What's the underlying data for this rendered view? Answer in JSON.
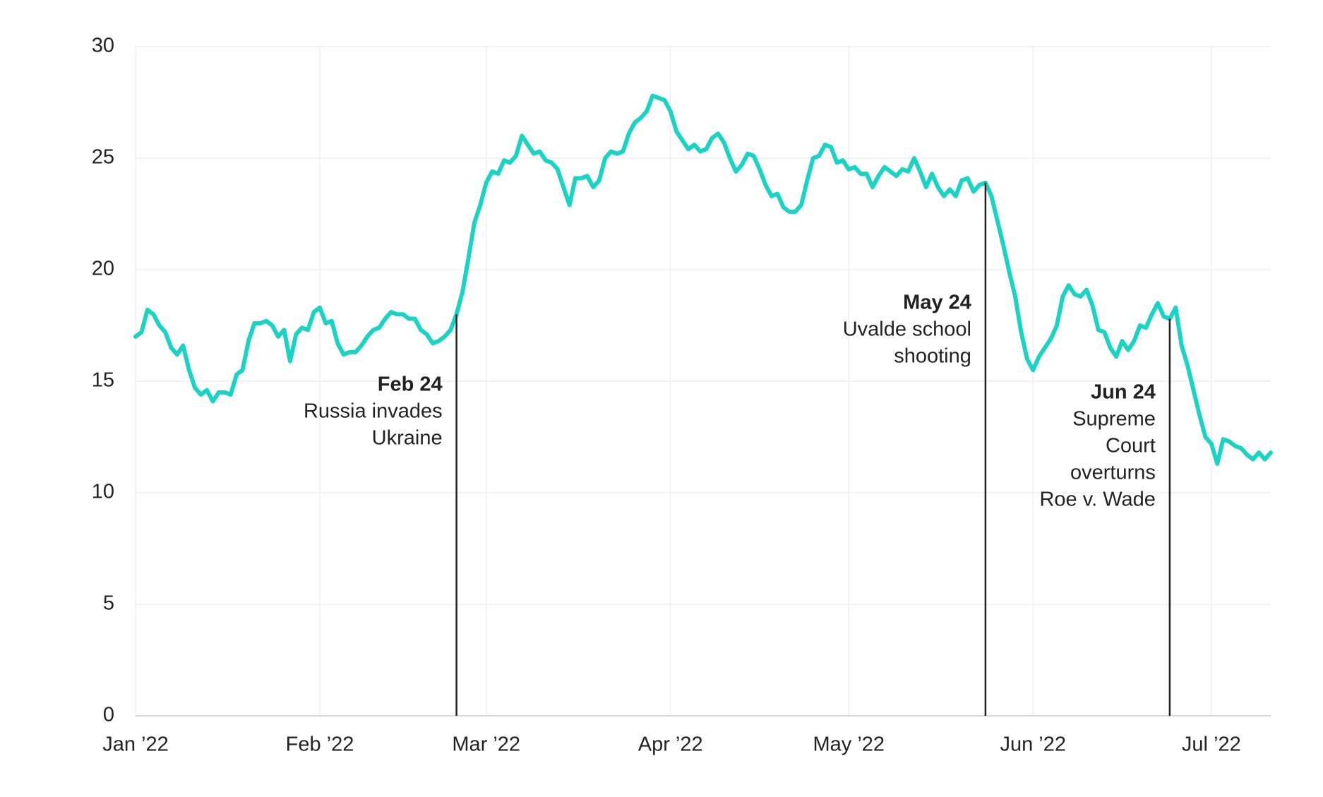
{
  "chart_data": {
    "type": "line",
    "color": "#19d3c5",
    "grid": true,
    "xlim": [
      0,
      191
    ],
    "ylim": [
      0,
      30
    ],
    "yticks": [
      0,
      5,
      10,
      15,
      20,
      25,
      30
    ],
    "xticks": [
      {
        "value": 0,
        "label": "Jan ’22"
      },
      {
        "value": 31,
        "label": "Feb ’22"
      },
      {
        "value": 59,
        "label": "Mar ’22"
      },
      {
        "value": 90,
        "label": "Apr ’22"
      },
      {
        "value": 120,
        "label": "May ’22"
      },
      {
        "value": 151,
        "label": "Jun ’22"
      },
      {
        "value": 181,
        "label": "Jul ’22"
      }
    ],
    "x": [
      0,
      1,
      2,
      3,
      4,
      5,
      6,
      7,
      8,
      9,
      10,
      11,
      12,
      13,
      14,
      15,
      16,
      17,
      18,
      19,
      20,
      21,
      22,
      23,
      24,
      25,
      26,
      27,
      28,
      29,
      30,
      31,
      32,
      33,
      34,
      35,
      36,
      37,
      38,
      39,
      40,
      41,
      42,
      43,
      44,
      45,
      46,
      47,
      48,
      49,
      50,
      51,
      52,
      53,
      54,
      55,
      56,
      57,
      58,
      59,
      60,
      61,
      62,
      63,
      64,
      65,
      66,
      67,
      68,
      69,
      70,
      71,
      72,
      73,
      74,
      75,
      76,
      77,
      78,
      79,
      80,
      81,
      82,
      83,
      84,
      85,
      86,
      87,
      88,
      89,
      90,
      91,
      92,
      93,
      94,
      95,
      96,
      97,
      98,
      99,
      100,
      101,
      102,
      103,
      104,
      105,
      106,
      107,
      108,
      109,
      110,
      111,
      112,
      113,
      114,
      115,
      116,
      117,
      118,
      119,
      120,
      121,
      122,
      123,
      124,
      125,
      126,
      127,
      128,
      129,
      130,
      131,
      132,
      133,
      134,
      135,
      136,
      137,
      138,
      139,
      140,
      141,
      142,
      143,
      144,
      145,
      146,
      147,
      148,
      149,
      150,
      151,
      152,
      153,
      154,
      155,
      156,
      157,
      158,
      159,
      160,
      161,
      162,
      163,
      164,
      165,
      166,
      167,
      168,
      169,
      170,
      171,
      172,
      173,
      174,
      175,
      176,
      177,
      178,
      179,
      180,
      181,
      182,
      183,
      184,
      185,
      186,
      187,
      188,
      189,
      190,
      191
    ],
    "values": [
      17.0,
      17.2,
      18.2,
      18.0,
      17.5,
      17.2,
      16.5,
      16.2,
      16.6,
      15.5,
      14.7,
      14.4,
      14.6,
      14.1,
      14.5,
      14.5,
      14.4,
      15.3,
      15.5,
      16.8,
      17.6,
      17.6,
      17.7,
      17.5,
      17.0,
      17.3,
      15.9,
      17.1,
      17.4,
      17.3,
      18.1,
      18.3,
      17.6,
      17.7,
      16.7,
      16.2,
      16.3,
      16.3,
      16.6,
      17.0,
      17.3,
      17.4,
      17.8,
      18.1,
      18.0,
      18.0,
      17.8,
      17.8,
      17.3,
      17.1,
      16.7,
      16.8,
      17.0,
      17.3,
      18.0,
      19.0,
      20.5,
      22.1,
      22.9,
      23.9,
      24.4,
      24.3,
      24.9,
      24.8,
      25.1,
      26.0,
      25.6,
      25.2,
      25.3,
      24.9,
      24.8,
      24.5,
      23.7,
      22.9,
      24.1,
      24.1,
      24.2,
      23.7,
      24.0,
      25.0,
      25.3,
      25.2,
      25.3,
      26.1,
      26.6,
      26.8,
      27.1,
      27.8,
      27.7,
      27.6,
      27.1,
      26.2,
      25.8,
      25.4,
      25.6,
      25.3,
      25.4,
      25.9,
      26.1,
      25.7,
      25.0,
      24.4,
      24.7,
      25.2,
      25.1,
      24.5,
      23.8,
      23.3,
      23.4,
      22.8,
      22.6,
      22.6,
      22.9,
      24.0,
      25.0,
      25.1,
      25.6,
      25.5,
      24.8,
      24.9,
      24.5,
      24.6,
      24.3,
      24.3,
      23.7,
      24.2,
      24.6,
      24.4,
      24.2,
      24.5,
      24.4,
      25.0,
      24.4,
      23.7,
      24.3,
      23.7,
      23.3,
      23.6,
      23.3,
      24.0,
      24.1,
      23.5,
      23.8,
      23.9,
      23.3,
      22.2,
      21.1,
      19.9,
      18.8,
      17.2,
      16.0,
      15.5,
      16.1,
      16.5,
      16.9,
      17.5,
      18.8,
      19.3,
      18.9,
      18.8,
      19.1,
      18.4,
      17.3,
      17.2,
      16.5,
      16.1,
      16.8,
      16.4,
      16.8,
      17.5,
      17.4,
      18.0,
      18.5,
      17.9,
      17.8,
      18.3,
      16.6,
      15.7,
      14.6,
      13.5,
      12.5,
      12.2,
      11.3,
      12.4,
      12.3,
      12.1,
      12.0,
      11.7,
      11.5,
      11.8,
      11.5,
      11.8
    ],
    "annotations": [
      {
        "date": "Feb 24",
        "text": [
          "Russia invades",
          "Ukraine"
        ],
        "x": 54
      },
      {
        "date": "May 24",
        "text": [
          "Uvalde school",
          "shooting"
        ],
        "x": 143
      },
      {
        "date": "Jun 24",
        "text": [
          "Supreme",
          "Court",
          "overturns",
          "Roe v. Wade"
        ],
        "x": 174
      }
    ]
  }
}
